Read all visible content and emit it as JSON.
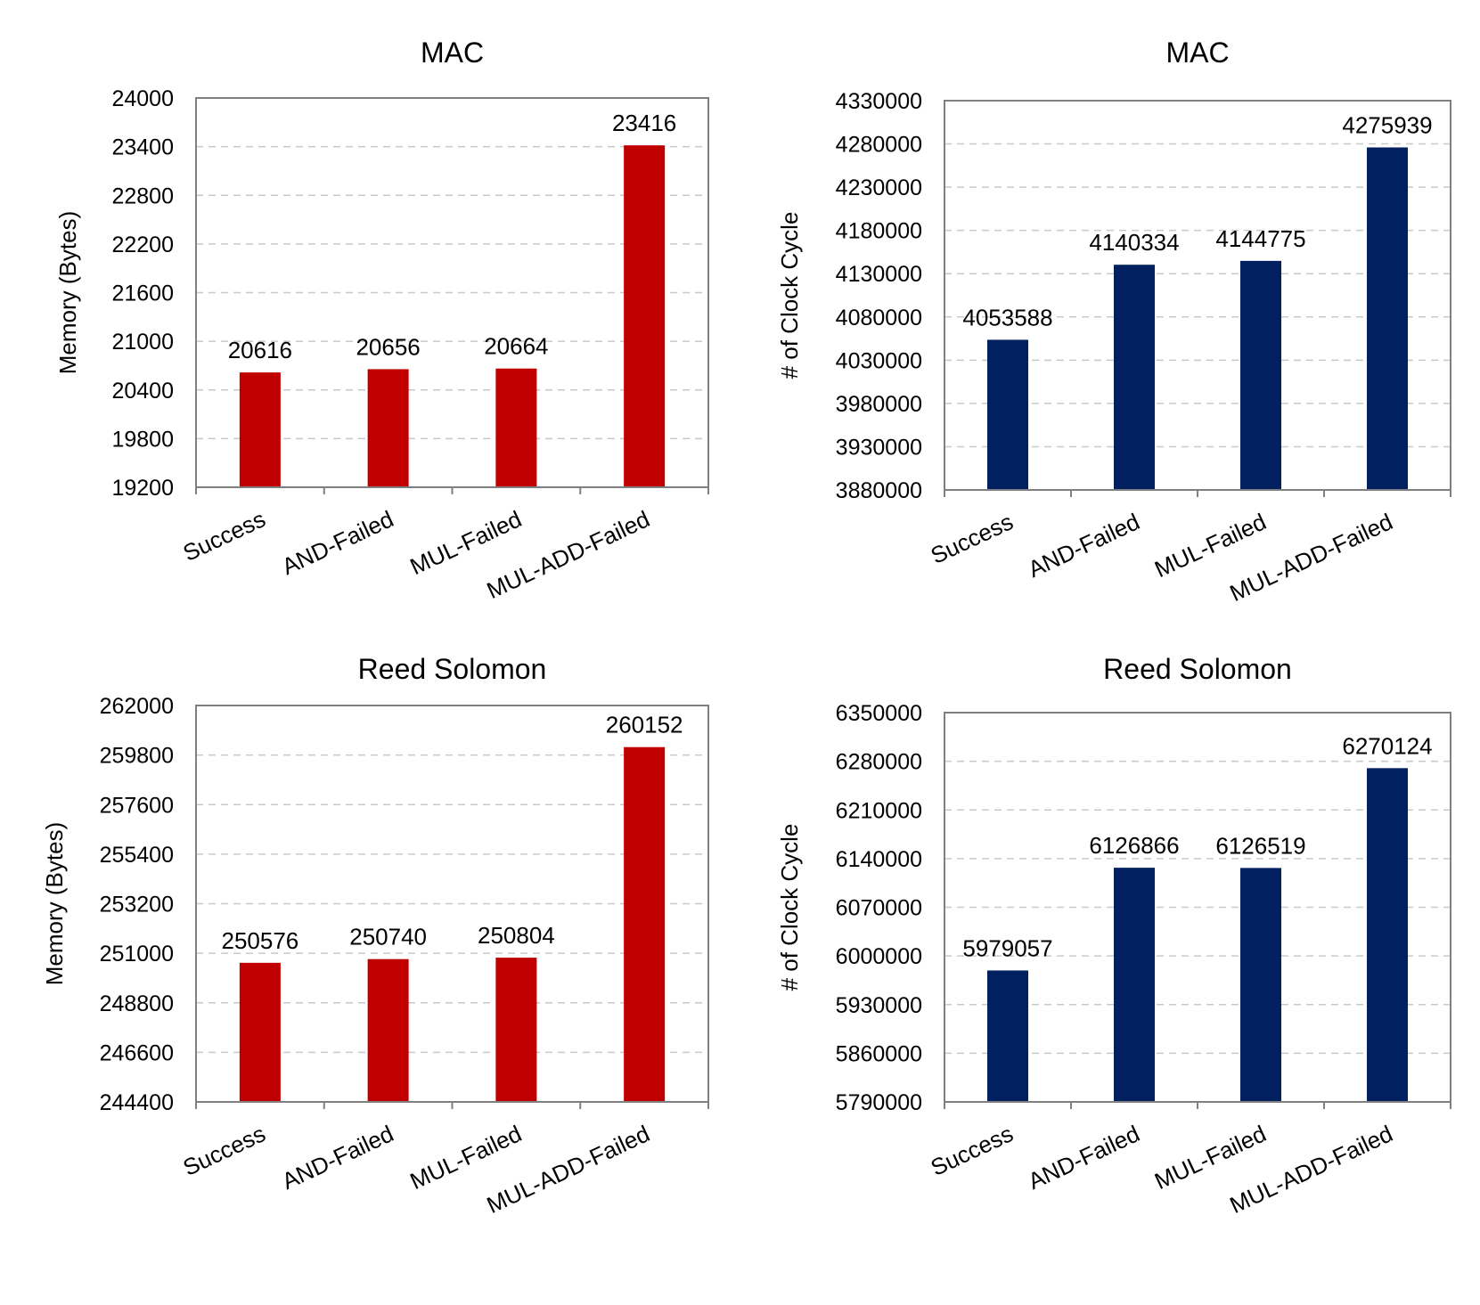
{
  "chart_data": [
    {
      "type": "bar",
      "title": "MAC",
      "xlabel": "",
      "ylabel": "Memory (Bytes)",
      "categories": [
        "Success",
        "AND-Failed",
        "MUL-Failed",
        "MUL-ADD-Failed"
      ],
      "values": [
        20616,
        20656,
        20664,
        23416
      ],
      "ylim": [
        19200,
        24000
      ],
      "yticks": [
        19200,
        19800,
        20400,
        21000,
        21600,
        22200,
        22800,
        23400,
        24000
      ],
      "color": "#c00000",
      "grid": true
    },
    {
      "type": "bar",
      "title": "MAC",
      "xlabel": "",
      "ylabel": "# of Clock Cycle",
      "categories": [
        "Success",
        "AND-Failed",
        "MUL-Failed",
        "MUL-ADD-Failed"
      ],
      "values": [
        4053588,
        4140334,
        4144775,
        4275939
      ],
      "ylim": [
        3880000,
        4330000
      ],
      "yticks": [
        3880000,
        3930000,
        3980000,
        4030000,
        4080000,
        4130000,
        4180000,
        4230000,
        4280000,
        4330000
      ],
      "color": "#002060",
      "grid": true
    },
    {
      "type": "bar",
      "title": "Reed Solomon",
      "xlabel": "",
      "ylabel": "Memory (Bytes)",
      "categories": [
        "Success",
        "AND-Failed",
        "MUL-Failed",
        "MUL-ADD-Failed"
      ],
      "values": [
        250576,
        250740,
        250804,
        260152
      ],
      "ylim": [
        244400,
        262000
      ],
      "yticks": [
        244400,
        246600,
        248800,
        251000,
        253200,
        255400,
        257600,
        259800,
        262000
      ],
      "color": "#c00000",
      "grid": true
    },
    {
      "type": "bar",
      "title": "Reed Solomon",
      "xlabel": "",
      "ylabel": "# of Clock Cycle",
      "categories": [
        "Success",
        "AND-Failed",
        "MUL-Failed",
        "MUL-ADD-Failed"
      ],
      "values": [
        5979057,
        6126866,
        6126519,
        6270124
      ],
      "ylim": [
        5790000,
        6350000
      ],
      "yticks": [
        5790000,
        5860000,
        5930000,
        6000000,
        6070000,
        6140000,
        6210000,
        6280000,
        6350000
      ],
      "color": "#002060",
      "grid": true
    }
  ]
}
